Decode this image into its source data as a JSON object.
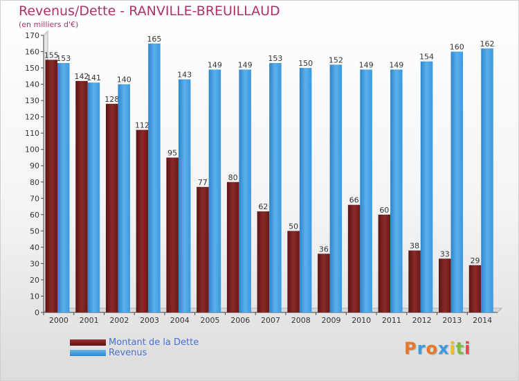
{
  "chart_data": {
    "type": "bar",
    "title": "Revenus/Dette - RANVILLE-BREUILLAUD",
    "subtitle": "(en milliers d'€)",
    "categories": [
      "2000",
      "2001",
      "2002",
      "2003",
      "2004",
      "2005",
      "2006",
      "2007",
      "2008",
      "2009",
      "2010",
      "2011",
      "2012",
      "2013",
      "2014"
    ],
    "series": [
      {
        "name": "Montant de la Dette",
        "color": "#7a1f1f",
        "values": [
          155,
          142,
          128,
          112,
          95,
          77,
          80,
          62,
          50,
          36,
          66,
          60,
          38,
          33,
          29
        ]
      },
      {
        "name": "Revenus",
        "color": "#3f9be0",
        "values": [
          153,
          141,
          140,
          165,
          143,
          149,
          149,
          153,
          150,
          152,
          149,
          149,
          154,
          160,
          162
        ]
      }
    ],
    "ylim": [
      0,
      170
    ],
    "yticks": [
      0,
      10,
      20,
      30,
      40,
      50,
      60,
      70,
      80,
      90,
      100,
      110,
      120,
      130,
      140,
      150,
      160,
      170
    ],
    "grid": false,
    "legend_position": "bottom-left"
  },
  "logo": {
    "letters": [
      "P",
      "r",
      "o",
      "x",
      "i",
      "t",
      "i"
    ],
    "colors": [
      "#e8762b",
      "#3a9be0",
      "#e8762b",
      "#3a9be0",
      "#f0c020",
      "#7bbf3a",
      "#e04a4a"
    ]
  }
}
